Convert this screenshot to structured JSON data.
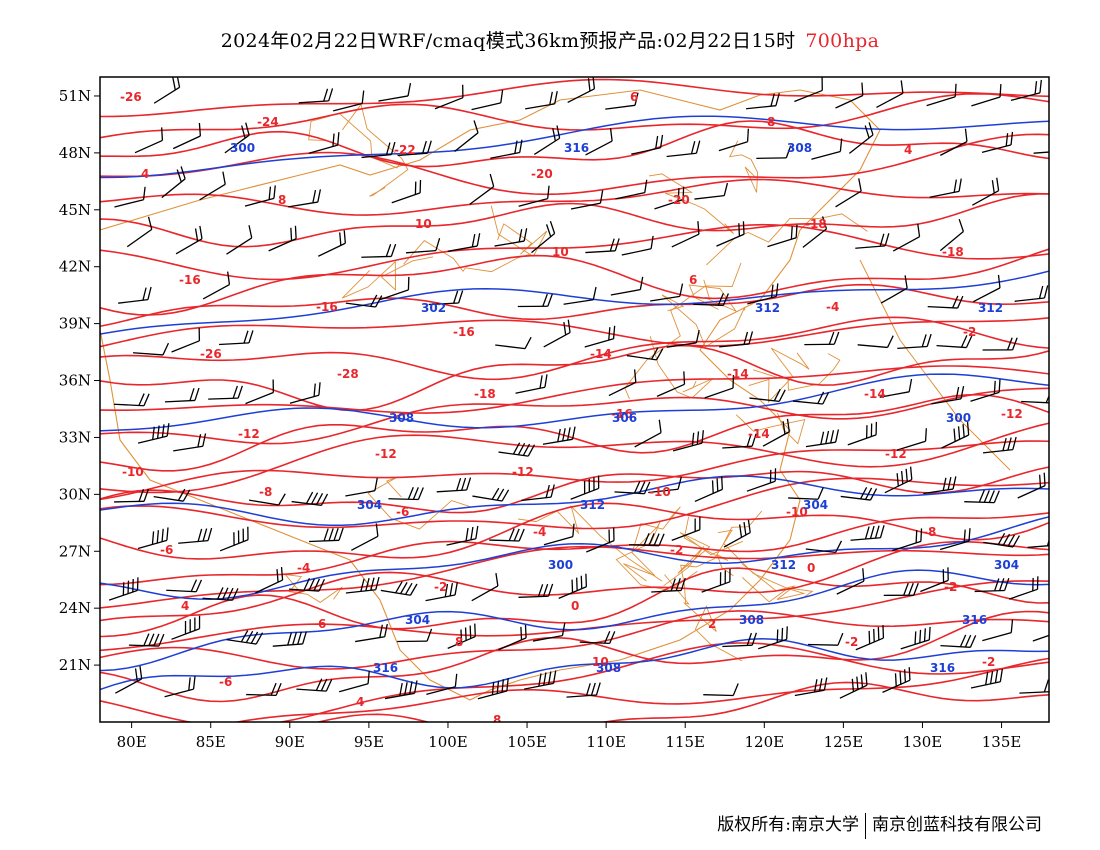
{
  "title": {
    "text": "2024年02月22日WRF/cmaq模式36km预报产品:02月22日15时",
    "level": "700hpa"
  },
  "colors": {
    "temperature_isolines": "#e8262b",
    "height_isolines": "#1e3fd6",
    "boundaries": "#e0913a",
    "wind_barbs": "#000000"
  },
  "map": {
    "lon_range": [
      78,
      138
    ],
    "lat_range": [
      18,
      52
    ],
    "x_ticks": [
      "80E",
      "85E",
      "90E",
      "95E",
      "100E",
      "105E",
      "110E",
      "115E",
      "120E",
      "125E",
      "130E",
      "135E"
    ],
    "y_ticks": [
      "51N",
      "48N",
      "45N",
      "42N",
      "39N",
      "36N",
      "33N",
      "30N",
      "27N",
      "24N",
      "21N"
    ]
  },
  "temperature_labels": [
    "-26",
    "-24",
    "-22",
    "-20",
    "-20",
    "-18",
    "-18",
    "-16",
    "-16",
    "-16",
    "-14",
    "-14",
    "-14",
    "-12",
    "-12",
    "-12",
    "-12",
    "-10",
    "-10",
    "-8",
    "-6",
    "-4",
    "-2",
    "0",
    "2",
    "-2",
    "-2",
    "-6",
    "4",
    "8",
    "6",
    "8",
    "4",
    "4",
    "8",
    "10",
    "10",
    "6",
    "-4",
    "-2",
    "-26",
    "-28",
    "-18",
    "-16",
    "-14",
    "-12",
    "-10",
    "-8",
    "-6",
    "-4",
    "-2",
    "0",
    "-2",
    "4",
    "6",
    "8",
    "10"
  ],
  "height_labels": [
    "300",
    "302",
    "306",
    "304",
    "304",
    "304",
    "308",
    "308",
    "312",
    "308",
    "312",
    "312",
    "316",
    "316",
    "316",
    "312",
    "300",
    "304",
    "300",
    "308",
    "316"
  ],
  "footer": {
    "left": "版权所有:南京大学",
    "right": "南京创蓝科技有限公司"
  }
}
